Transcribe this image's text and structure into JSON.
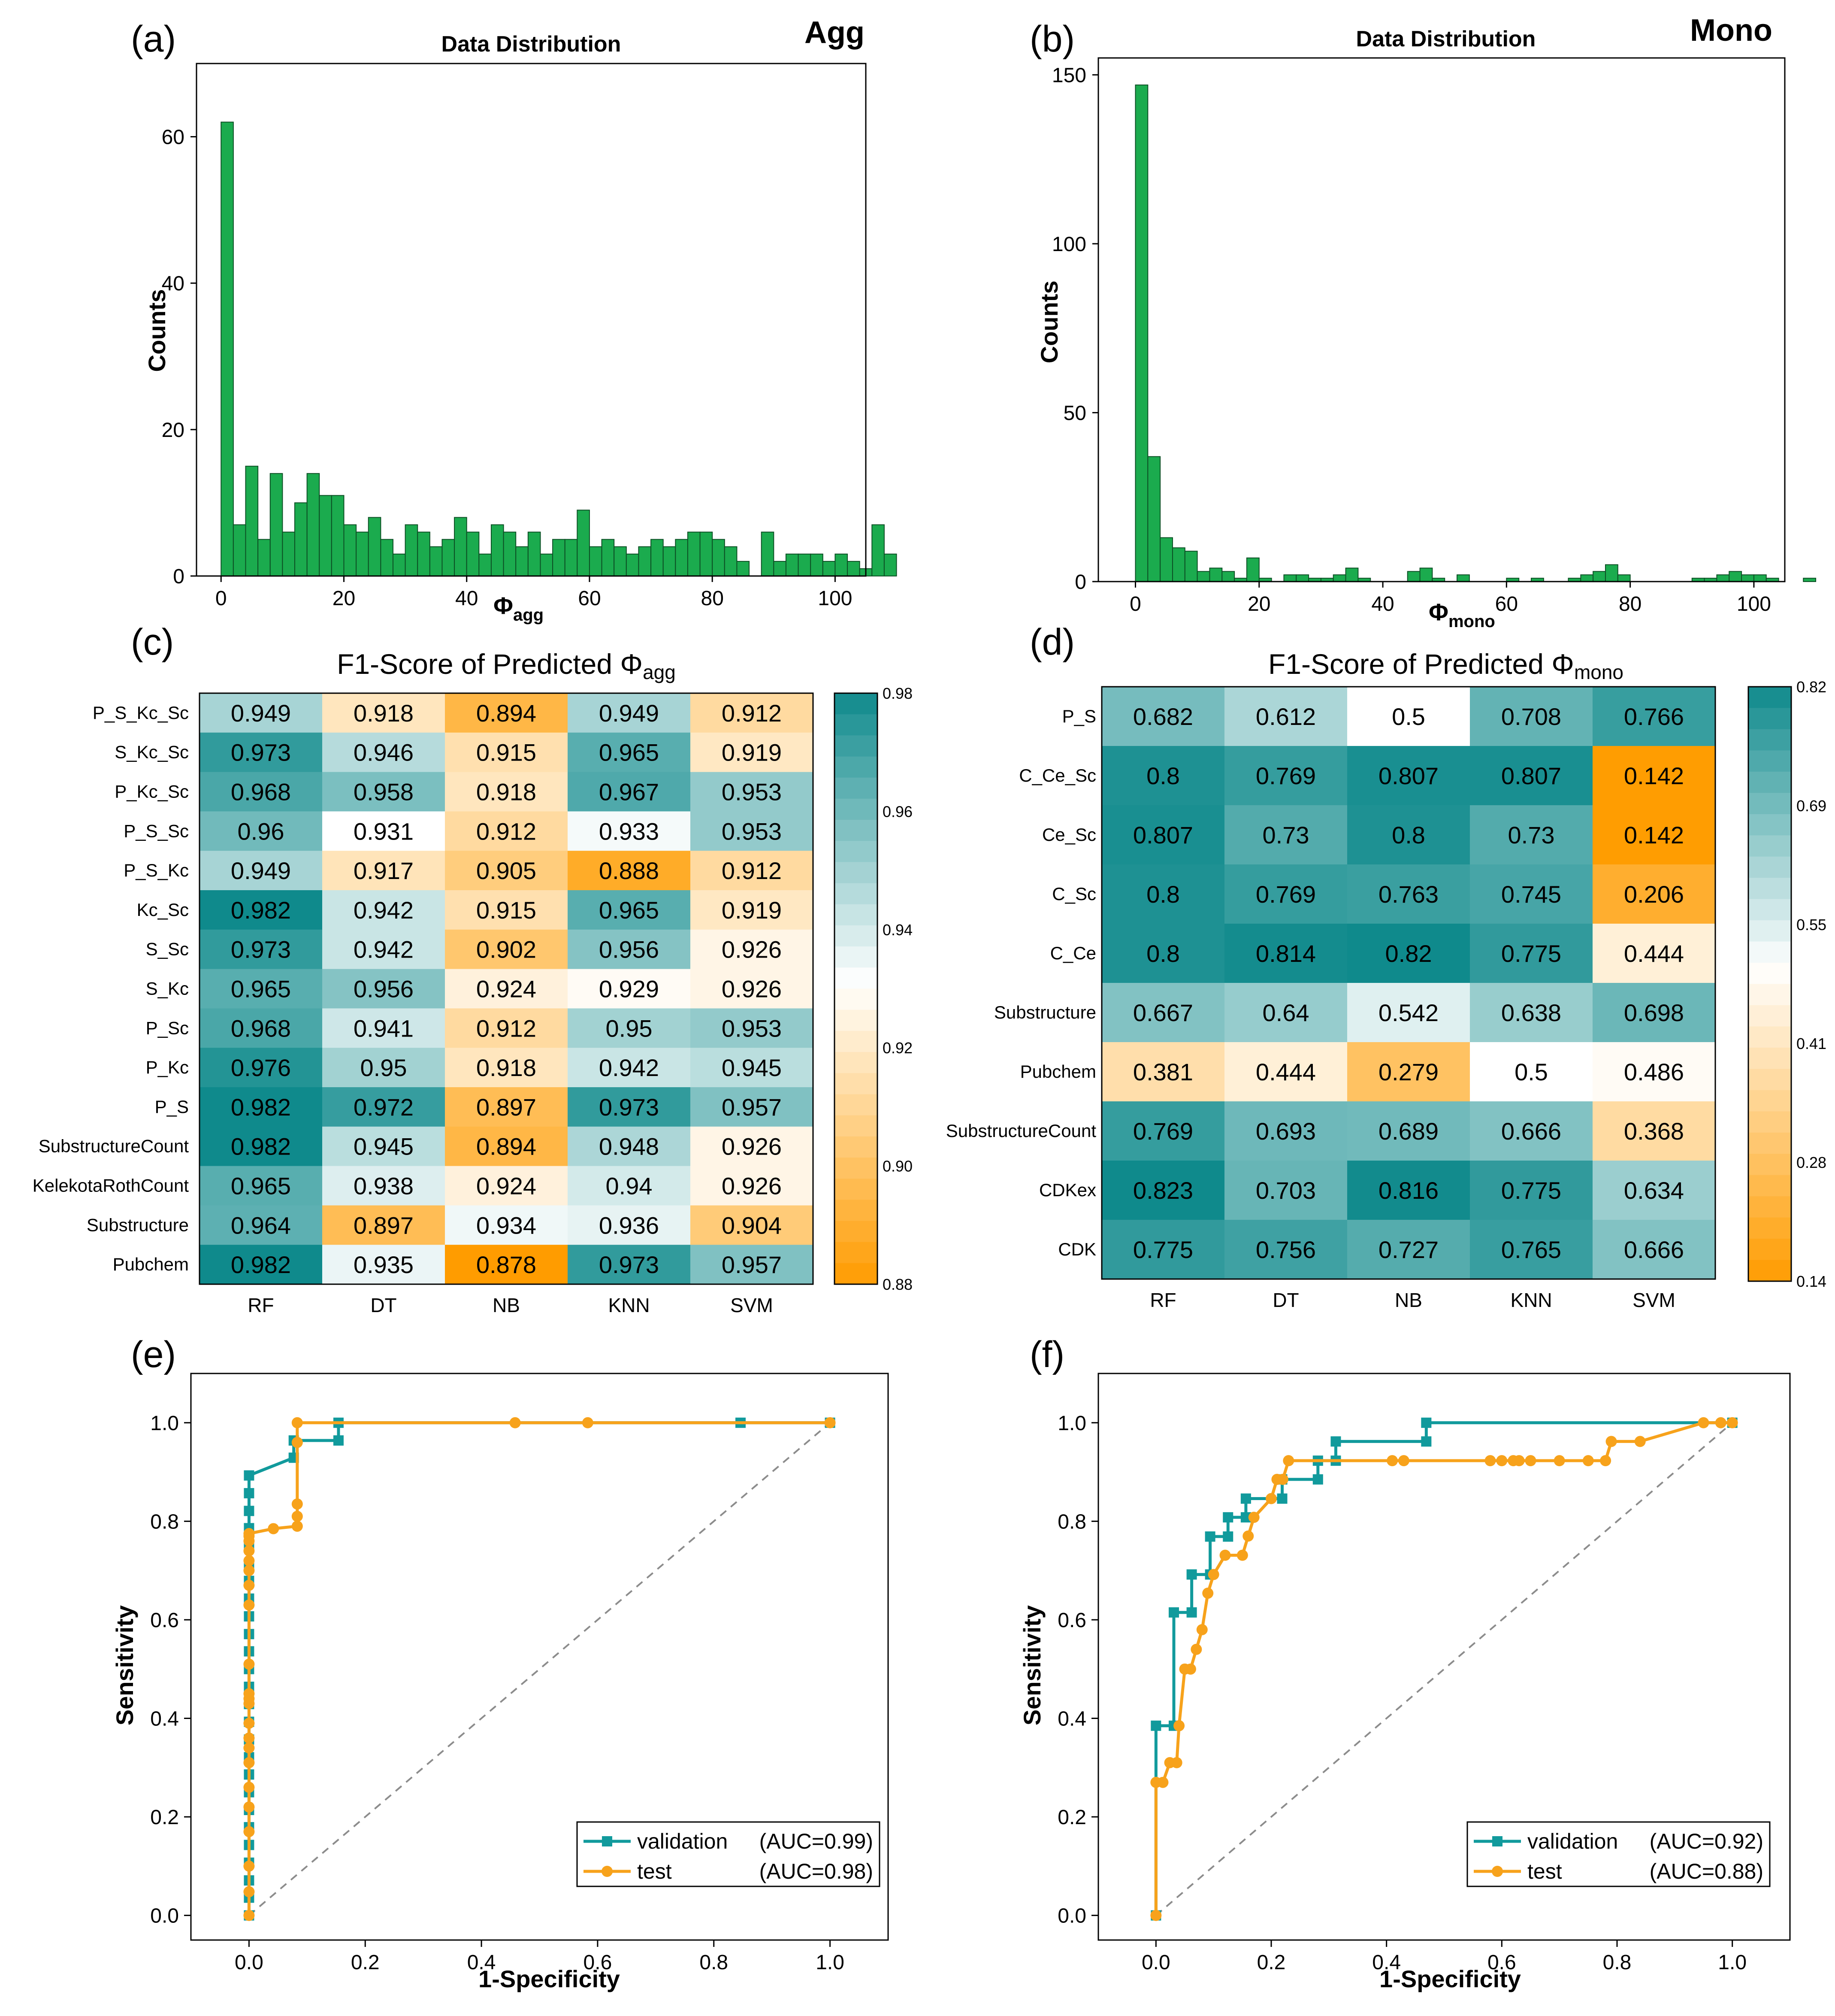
{
  "colors": {
    "bar_fill": "#1bab4e",
    "bar_edge": "#0c4f24",
    "tag": "#1a6f86",
    "validation": "#119a9c",
    "test": "#f7a21b",
    "diagonal": "#8c8c8c",
    "cmap": [
      "#ff9c00",
      "#ffffff",
      "#0f8a8c"
    ]
  },
  "panels": {
    "a": {
      "letter": "(a)",
      "tag": "Agg"
    },
    "b": {
      "letter": "(b)",
      "tag": "Mono"
    },
    "c": {
      "letter": "(c)"
    },
    "d": {
      "letter": "(d)"
    },
    "e": {
      "letter": "(e)"
    },
    "f": {
      "letter": "(f)"
    }
  },
  "chart_data": [
    {
      "id": "a",
      "type": "bar",
      "title": "Data Distribution",
      "xlabel_main": "Φ",
      "xlabel_sub": "agg",
      "ylabel": "Counts",
      "xlim": [
        -4,
        105
      ],
      "ylim": [
        0,
        70
      ],
      "bin_width": 2,
      "bin_start": 0,
      "xticks": [
        0,
        20,
        40,
        60,
        80,
        100
      ],
      "yticks": [
        0,
        20,
        40,
        60
      ],
      "values": [
        62,
        7,
        15,
        5,
        14,
        6,
        10,
        14,
        11,
        11,
        7,
        6,
        8,
        5,
        3,
        7,
        6,
        4,
        5,
        8,
        6,
        3,
        7,
        6,
        4,
        6,
        3,
        5,
        5,
        9,
        4,
        5,
        4,
        3,
        4,
        5,
        4,
        5,
        6,
        6,
        5,
        4,
        2,
        0,
        6,
        2,
        3,
        3,
        3,
        2,
        3,
        2,
        1,
        7,
        3
      ]
    },
    {
      "id": "b",
      "type": "bar",
      "title": "Data Distribution",
      "xlabel_main": "Φ",
      "xlabel_sub": "mono",
      "ylabel": "Counts",
      "xlim": [
        -6,
        105
      ],
      "ylim": [
        0,
        155
      ],
      "bin_width": 2,
      "bin_start": 0,
      "xticks": [
        0,
        20,
        40,
        60,
        80,
        100
      ],
      "yticks": [
        0,
        50,
        100,
        150
      ],
      "values": [
        147,
        37,
        13,
        10,
        9,
        3,
        4,
        3,
        1,
        7,
        1,
        0,
        2,
        2,
        1,
        1,
        2,
        4,
        1,
        0,
        0,
        0,
        3,
        4,
        1,
        0,
        2,
        0,
        0,
        0,
        1,
        0,
        1,
        0,
        0,
        1,
        2,
        3,
        5,
        2,
        0,
        0,
        0,
        0,
        0,
        1,
        1,
        2,
        3,
        2,
        2,
        1,
        0,
        0,
        1
      ]
    },
    {
      "id": "c",
      "type": "heatmap",
      "title_main": "F1-Score of Predicted Φ",
      "title_sub": "agg",
      "columns": [
        "RF",
        "DT",
        "NB",
        "KNN",
        "SVM"
      ],
      "rows": [
        "P_S_Kc_Sc",
        "S_Kc_Sc",
        "P_Kc_Sc",
        "P_S_Sc",
        "P_S_Kc",
        "Kc_Sc",
        "S_Sc",
        "S_Kc",
        "P_Sc",
        "P_Kc",
        "P_S",
        "SubstructureCount",
        "KelekotaRothCount",
        "Substructure",
        "Pubchem"
      ],
      "values": [
        [
          "0.949",
          "0.918",
          "0.894",
          "0.949",
          "0.912"
        ],
        [
          "0.973",
          "0.946",
          "0.915",
          "0.965",
          "0.919"
        ],
        [
          "0.968",
          "0.958",
          "0.918",
          "0.967",
          "0.953"
        ],
        [
          "0.96",
          "0.931",
          "0.912",
          "0.933",
          "0.953"
        ],
        [
          "0.949",
          "0.917",
          "0.905",
          "0.888",
          "0.912"
        ],
        [
          "0.982",
          "0.942",
          "0.915",
          "0.965",
          "0.919"
        ],
        [
          "0.973",
          "0.942",
          "0.902",
          "0.956",
          "0.926"
        ],
        [
          "0.965",
          "0.956",
          "0.924",
          "0.929",
          "0.926"
        ],
        [
          "0.968",
          "0.941",
          "0.912",
          "0.95",
          "0.953"
        ],
        [
          "0.976",
          "0.95",
          "0.918",
          "0.942",
          "0.945"
        ],
        [
          "0.982",
          "0.972",
          "0.897",
          "0.973",
          "0.957"
        ],
        [
          "0.982",
          "0.945",
          "0.894",
          "0.948",
          "0.926"
        ],
        [
          "0.965",
          "0.938",
          "0.924",
          "0.94",
          "0.926"
        ],
        [
          "0.964",
          "0.897",
          "0.934",
          "0.936",
          "0.904"
        ],
        [
          "0.982",
          "0.935",
          "0.878",
          "0.973",
          "0.957"
        ]
      ],
      "vmin": 0.88,
      "vmax": 0.98,
      "vmid": 0.931,
      "colorbar_ticks": [
        "0.98",
        "0.96",
        "0.94",
        "0.92",
        "0.90",
        "0.88"
      ]
    },
    {
      "id": "d",
      "type": "heatmap",
      "title_main": "F1-Score of Predicted Φ",
      "title_sub": "mono",
      "columns": [
        "RF",
        "DT",
        "NB",
        "KNN",
        "SVM"
      ],
      "rows": [
        "P_S",
        "C_Ce_Sc",
        "Ce_Sc",
        "C_Sc",
        "C_Ce",
        "Substructure",
        "Pubchem",
        "SubstructureCount",
        "CDKex",
        "CDK"
      ],
      "values": [
        [
          "0.682",
          "0.612",
          "0.5",
          "0.708",
          "0.766"
        ],
        [
          "0.8",
          "0.769",
          "0.807",
          "0.807",
          "0.142"
        ],
        [
          "0.807",
          "0.73",
          "0.8",
          "0.73",
          "0.142"
        ],
        [
          "0.8",
          "0.769",
          "0.763",
          "0.745",
          "0.206"
        ],
        [
          "0.8",
          "0.814",
          "0.82",
          "0.775",
          "0.444"
        ],
        [
          "0.667",
          "0.64",
          "0.542",
          "0.638",
          "0.698"
        ],
        [
          "0.381",
          "0.444",
          "0.279",
          "0.5",
          "0.486"
        ],
        [
          "0.769",
          "0.693",
          "0.689",
          "0.666",
          "0.368"
        ],
        [
          "0.823",
          "0.703",
          "0.816",
          "0.775",
          "0.634"
        ],
        [
          "0.775",
          "0.756",
          "0.727",
          "0.765",
          "0.666"
        ]
      ],
      "vmin": 0.14,
      "vmax": 0.82,
      "vmid": 0.5,
      "colorbar_ticks": [
        "0.82",
        "0.69",
        "0.55",
        "0.41",
        "0.28",
        "0.14"
      ]
    },
    {
      "id": "e",
      "type": "line",
      "xlabel": "1-Specificity",
      "ylabel": "Sensitivity",
      "xlim": [
        -0.1,
        1.1
      ],
      "ylim": [
        -0.05,
        1.1
      ],
      "xticks": [
        "0.0",
        "0.2",
        "0.4",
        "0.6",
        "0.8",
        "1.0"
      ],
      "yticks": [
        "0.0",
        "0.2",
        "0.4",
        "0.6",
        "0.8",
        "1.0"
      ],
      "series": [
        {
          "name": "validation",
          "auc": "(AUC=0.99)",
          "marker": "square",
          "x": [
            0,
            0,
            0,
            0,
            0,
            0,
            0,
            0,
            0,
            0,
            0,
            0,
            0,
            0,
            0,
            0,
            0,
            0,
            0,
            0,
            0,
            0,
            0,
            0,
            0,
            0,
            0.077,
            0.077,
            0.154,
            0.154,
            0.846,
            1
          ],
          "y": [
            0,
            0.036,
            0.071,
            0.107,
            0.143,
            0.179,
            0.214,
            0.25,
            0.286,
            0.321,
            0.357,
            0.393,
            0.429,
            0.464,
            0.5,
            0.536,
            0.571,
            0.607,
            0.643,
            0.679,
            0.714,
            0.75,
            0.786,
            0.821,
            0.857,
            0.893,
            0.929,
            0.964,
            0.964,
            1,
            1,
            1
          ]
        },
        {
          "name": "test",
          "auc": "(AUC=0.98)",
          "marker": "circle",
          "x": [
            0,
            0,
            0,
            0,
            0,
            0,
            0,
            0,
            0,
            0,
            0,
            0,
            0,
            0,
            0,
            0,
            0,
            0,
            0,
            0,
            0,
            0,
            0.042,
            0.083,
            0.083,
            0.083,
            0.083,
            0.083,
            0.458,
            0.583,
            1
          ],
          "y": [
            0,
            0.048,
            0.1,
            0.17,
            0.22,
            0.26,
            0.31,
            0.34,
            0.36,
            0.39,
            0.43,
            0.44,
            0.45,
            0.51,
            0.63,
            0.67,
            0.7,
            0.72,
            0.74,
            0.76,
            0.77,
            0.775,
            0.785,
            0.79,
            0.81,
            0.835,
            0.96,
            1,
            1,
            1,
            1
          ]
        }
      ],
      "diagonal": [
        [
          0,
          0
        ],
        [
          1,
          1
        ]
      ]
    },
    {
      "id": "f",
      "type": "line",
      "xlabel": "1-Specificity",
      "ylabel": "Sensitivity",
      "xlim": [
        -0.1,
        1.1
      ],
      "ylim": [
        -0.05,
        1.1
      ],
      "xticks": [
        "0.0",
        "0.2",
        "0.4",
        "0.6",
        "0.8",
        "1.0"
      ],
      "yticks": [
        "0.0",
        "0.2",
        "0.4",
        "0.6",
        "0.8",
        "1.0"
      ],
      "series": [
        {
          "name": "validation",
          "auc": "(AUC=0.92)",
          "marker": "square",
          "x": [
            0,
            0,
            0.031,
            0.031,
            0.062,
            0.062,
            0.094,
            0.094,
            0.125,
            0.125,
            0.156,
            0.156,
            0.219,
            0.219,
            0.281,
            0.281,
            0.312,
            0.312,
            0.469,
            0.469,
            1
          ],
          "y": [
            0,
            0.385,
            0.385,
            0.615,
            0.615,
            0.692,
            0.692,
            0.769,
            0.769,
            0.808,
            0.808,
            0.846,
            0.846,
            0.885,
            0.885,
            0.923,
            0.923,
            0.962,
            0.962,
            1,
            1
          ]
        },
        {
          "name": "test",
          "auc": "(AUC=0.88)",
          "marker": "circle",
          "x": [
            0,
            0,
            0.012,
            0.024,
            0.036,
            0.04,
            0.05,
            0.06,
            0.07,
            0.08,
            0.09,
            0.1,
            0.12,
            0.15,
            0.16,
            0.17,
            0.2,
            0.21,
            0.22,
            0.23,
            0.41,
            0.43,
            0.58,
            0.6,
            0.62,
            0.63,
            0.65,
            0.7,
            0.75,
            0.78,
            0.79,
            0.84,
            0.95,
            0.98,
            1
          ],
          "y": [
            0,
            0.27,
            0.27,
            0.31,
            0.31,
            0.385,
            0.5,
            0.5,
            0.54,
            0.58,
            0.654,
            0.692,
            0.731,
            0.731,
            0.77,
            0.808,
            0.846,
            0.885,
            0.885,
            0.923,
            0.923,
            0.923,
            0.923,
            0.923,
            0.923,
            0.923,
            0.923,
            0.923,
            0.923,
            0.923,
            0.962,
            0.962,
            1,
            1,
            1
          ]
        }
      ],
      "diagonal": [
        [
          0,
          0
        ],
        [
          1,
          1
        ]
      ]
    }
  ]
}
